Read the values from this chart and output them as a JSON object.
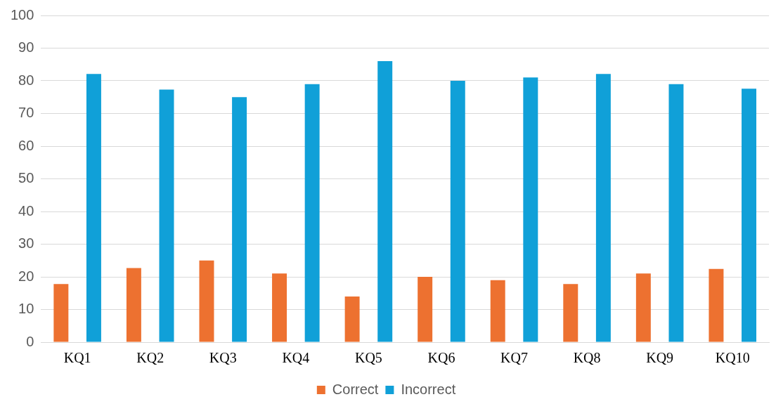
{
  "chart_data": {
    "type": "bar",
    "categories": [
      "KQ1",
      "KQ2",
      "KQ3",
      "KQ4",
      "KQ5",
      "KQ6",
      "KQ7",
      "KQ8",
      "KQ9",
      "KQ10"
    ],
    "series": [
      {
        "name": "Correct",
        "color": "#ed7130",
        "values": [
          17.8,
          22.7,
          25,
          21,
          14,
          20,
          19,
          17.8,
          21,
          22.4
        ]
      },
      {
        "name": "Incorrect",
        "color": "#10a0d8",
        "values": [
          82.1,
          77.3,
          75,
          79,
          86,
          80,
          81,
          82.1,
          79,
          77.6
        ]
      }
    ],
    "ylim": [
      0,
      100
    ],
    "yticks": [
      0,
      10,
      20,
      30,
      40,
      50,
      60,
      70,
      80,
      90,
      100
    ],
    "grid": "y",
    "legend": "bottom"
  }
}
